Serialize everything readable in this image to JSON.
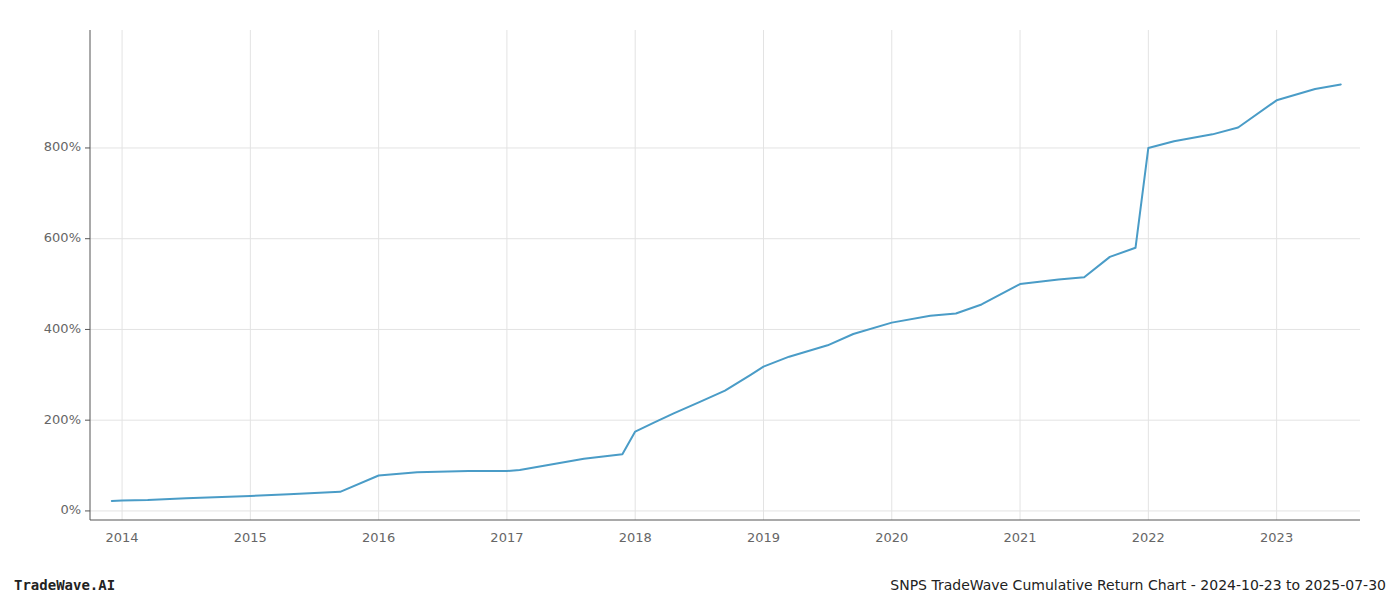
{
  "chart_data": {
    "type": "line",
    "x": [
      2013.92,
      2014.0,
      2014.2,
      2014.5,
      2015.0,
      2015.3,
      2015.7,
      2016.0,
      2016.3,
      2016.7,
      2017.0,
      2017.1,
      2017.3,
      2017.6,
      2017.9,
      2018.0,
      2018.15,
      2018.3,
      2018.5,
      2018.7,
      2018.9,
      2019.0,
      2019.2,
      2019.5,
      2019.7,
      2020.0,
      2020.3,
      2020.5,
      2020.7,
      2021.0,
      2021.15,
      2021.3,
      2021.5,
      2021.7,
      2021.9,
      2022.0,
      2022.2,
      2022.5,
      2022.7,
      2023.0,
      2023.3,
      2023.5
    ],
    "values": [
      22,
      23,
      24,
      28,
      33,
      37,
      42,
      78,
      85,
      88,
      88,
      90,
      100,
      115,
      125,
      175,
      195,
      215,
      240,
      265,
      300,
      318,
      340,
      365,
      390,
      415,
      430,
      435,
      455,
      500,
      505,
      510,
      515,
      560,
      580,
      800,
      815,
      830,
      845,
      905,
      930,
      940
    ],
    "color": "#4a9cc7",
    "xlim": [
      2013.75,
      2023.65
    ],
    "ylim": [
      -20,
      1060
    ],
    "xticks": [
      2014,
      2015,
      2016,
      2017,
      2018,
      2019,
      2020,
      2021,
      2022,
      2023
    ],
    "yticks": [
      {
        "value": 0,
        "label": "0%"
      },
      {
        "value": 200,
        "label": "200%"
      },
      {
        "value": 400,
        "label": "400%"
      },
      {
        "value": 600,
        "label": "600%"
      },
      {
        "value": 800,
        "label": "800%"
      }
    ],
    "grid": true,
    "annotations": [
      "TradeWave.AI",
      "SNPS TradeWave Cumulative Return Chart - 2024-10-23 to 2025-07-30"
    ]
  }
}
